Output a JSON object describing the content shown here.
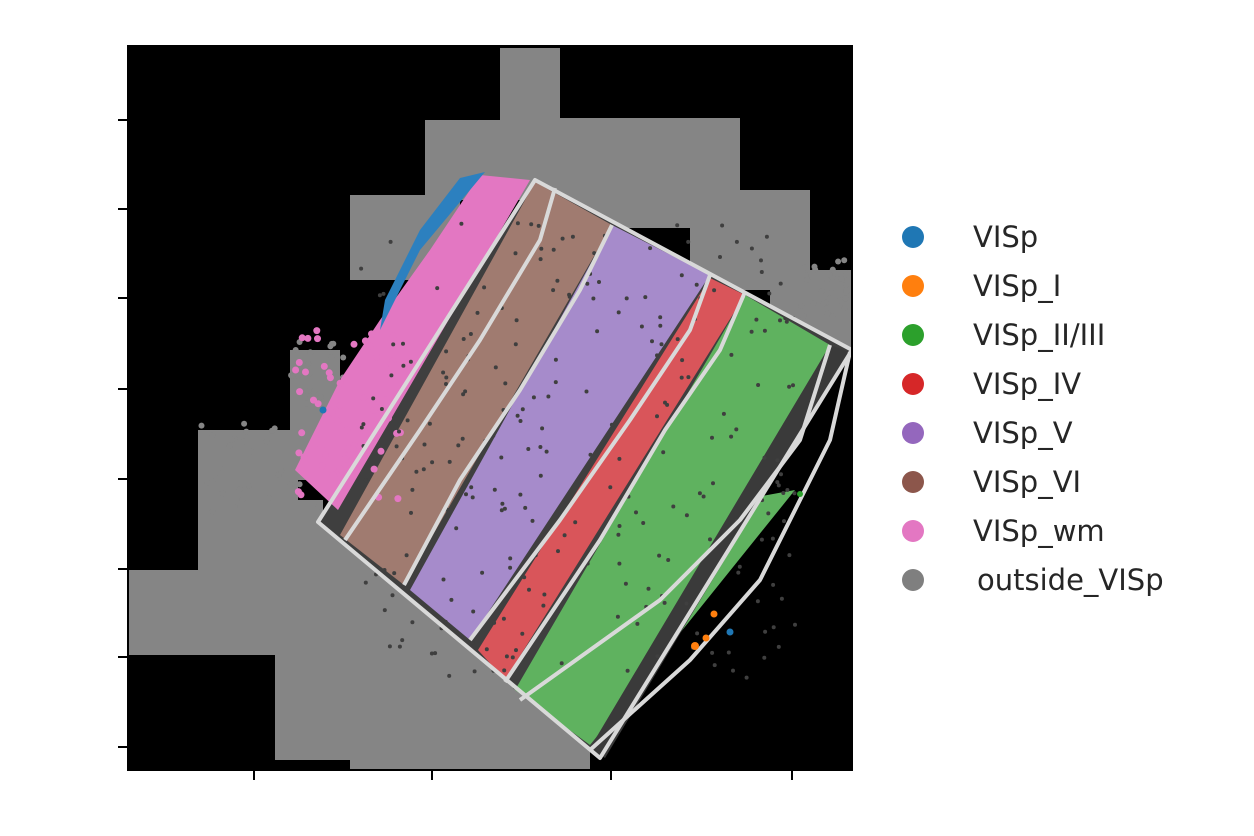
{
  "chart_data": {
    "type": "scatter",
    "title": "",
    "xlabel": "",
    "ylabel": "",
    "background": "#000000",
    "x_tick_count": 4,
    "y_tick_count": 8,
    "tick_labels_shown": false,
    "grid": false,
    "legend_placement": "right",
    "series": [
      {
        "name": "VISp",
        "color": "#1f77b4"
      },
      {
        "name": "VISp_I",
        "color": "#ff7f0e"
      },
      {
        "name": "VISp_II/III",
        "color": "#2ca02c"
      },
      {
        "name": "VISp_IV",
        "color": "#d62728"
      },
      {
        "name": "VISp_V",
        "color": "#9467bd"
      },
      {
        "name": "VISp_VI",
        "color": "#8c564b"
      },
      {
        "name": "VISp_wm",
        "color": "#e377c2"
      },
      {
        "name": "outside_VISp",
        "color": "#7f7f7f"
      }
    ],
    "region_outline_color": "#d9d9d9"
  }
}
